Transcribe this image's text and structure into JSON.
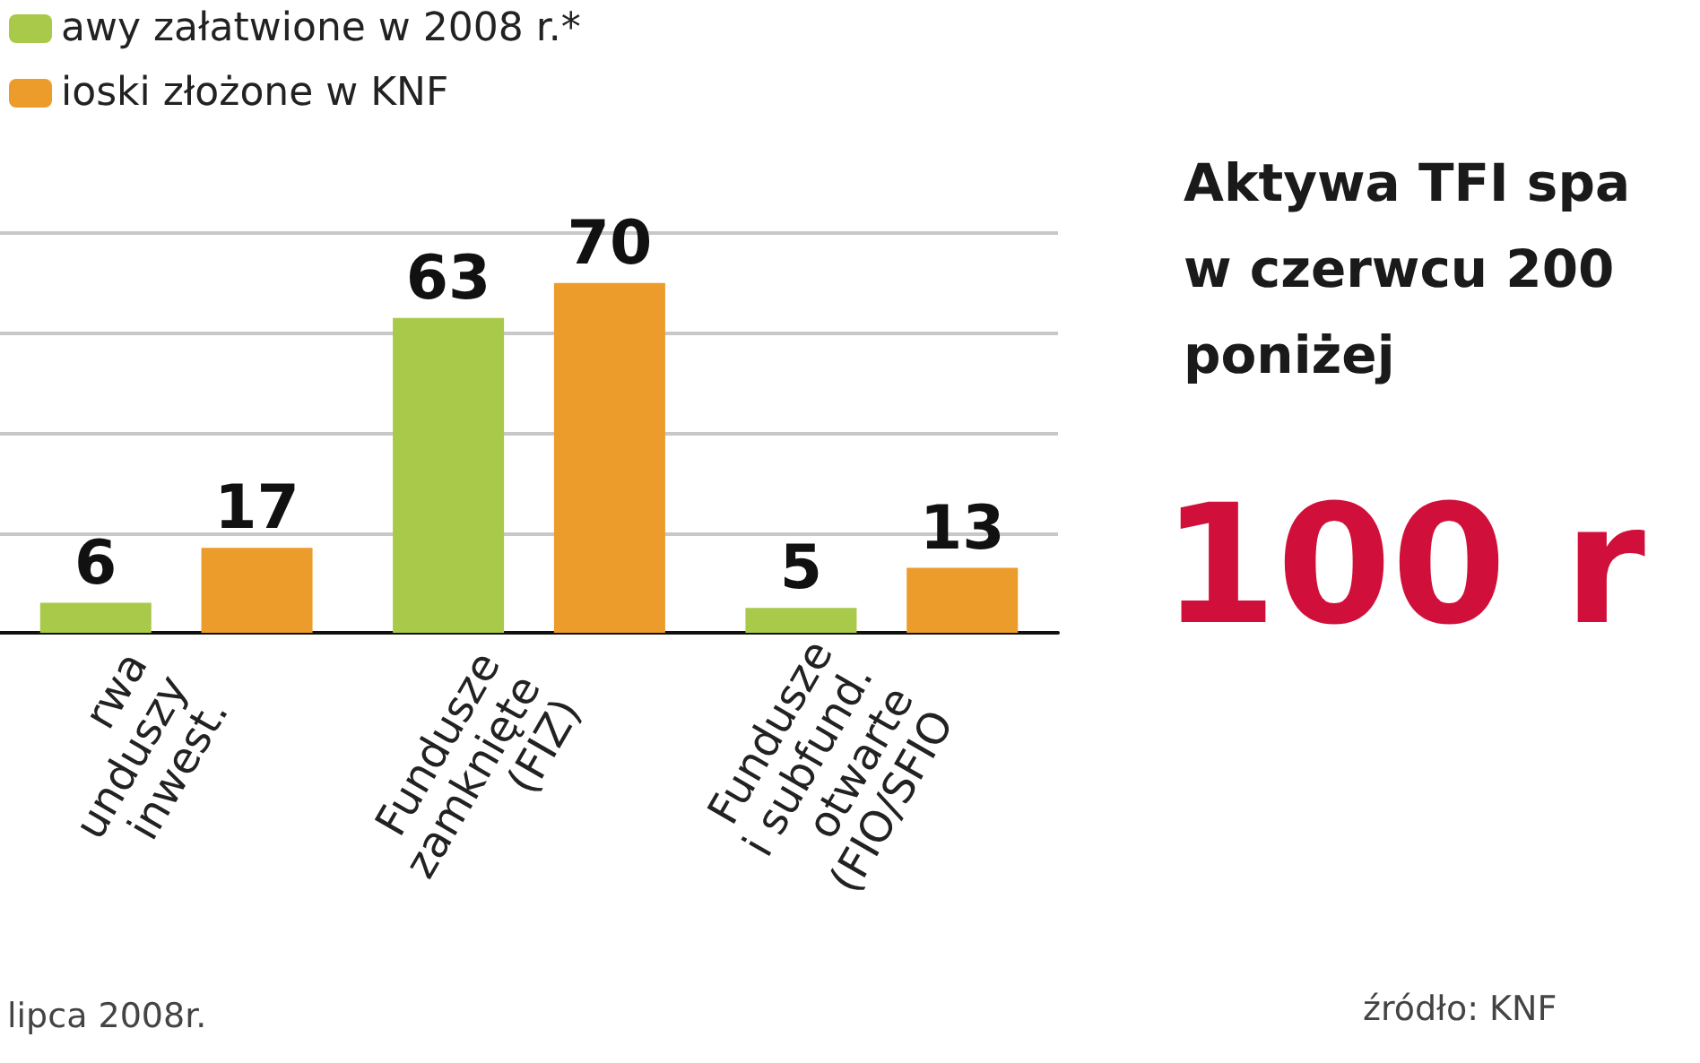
{
  "chart_data": [
    {
      "type": "bar",
      "categories": [
        "rwa\nunduszy\ninwest.",
        "Fundusze\nzamknięte\n(FIZ)",
        "Fundusze\ni subfund.\notwarte\n(FIO/SFIO"
      ],
      "series": [
        {
          "name": "awy załatwione w 2008 r.*",
          "color": "#a9c94a",
          "values": [
            6,
            63,
            5
          ]
        },
        {
          "name": "ioski złożone w KNF",
          "color": "#eb9c2a",
          "values": [
            17,
            70,
            13
          ]
        }
      ],
      "ylim": [
        0,
        80
      ],
      "yticks": [
        {
          "value": 0,
          "label": null
        },
        {
          "value": 20,
          "label": null
        },
        {
          "value": 40,
          "label": null
        },
        {
          "value": 60,
          "label": null
        },
        {
          "value": 80,
          "label": null
        }
      ],
      "grid": "y",
      "legend": "top left",
      "data_labels": true,
      "tick_labels": "x",
      "annotations": [
        "lipca 2008r."
      ]
    },
    {
      "type": "other",
      "title": "Aktywa TFI spa\nw czerwcu 200\nponiżej",
      "annotations": [
        "100 r",
        "źródło: KNF"
      ]
    }
  ]
}
